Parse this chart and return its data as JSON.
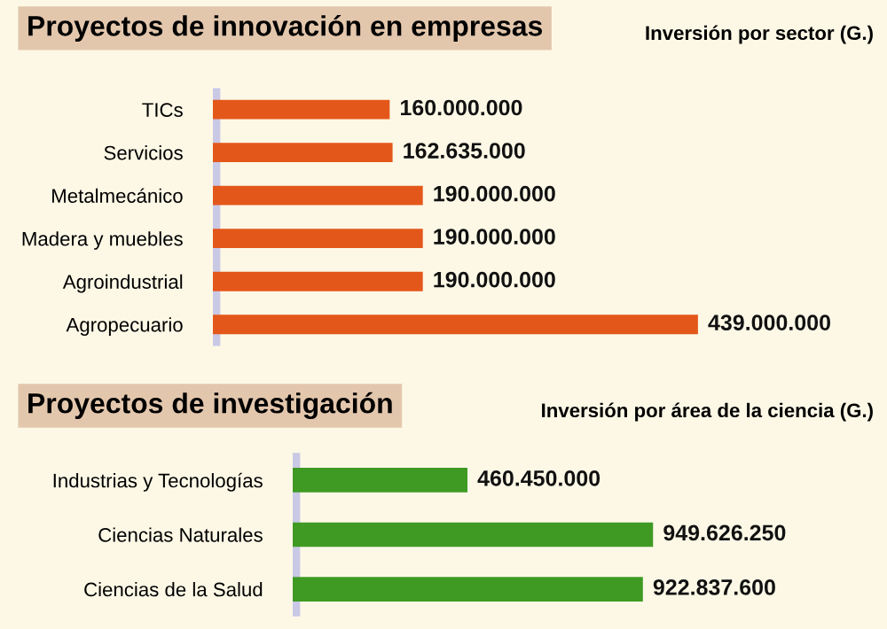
{
  "chart_data": [
    {
      "type": "bar",
      "orientation": "horizontal",
      "title": "Proyectos de innovación en empresas",
      "subtitle": "Inversión por sector (G.)",
      "categories": [
        "TICs",
        "Servicios",
        "Metalmecánico",
        "Madera y muebles",
        "Agroindustrial",
        "Agropecuario"
      ],
      "values": [
        160000000,
        162635000,
        190000000,
        190000000,
        190000000,
        439000000
      ],
      "value_labels": [
        "160.000.000",
        "162.635.000",
        "190.000.000",
        "190.000.000",
        "190.000.000",
        "439.000.000"
      ],
      "color": "#e4571a"
    },
    {
      "type": "bar",
      "orientation": "horizontal",
      "title": "Proyectos de investigación",
      "subtitle": "Inversión por área de la ciencia (G.)",
      "categories": [
        "Industrias y Tecnologías",
        "Ciencias Naturales",
        "Ciencias de la Salud"
      ],
      "values": [
        460450000,
        949626250,
        922837600
      ],
      "value_labels": [
        "460.450.000",
        "949.626.250",
        "922.837.600"
      ],
      "color": "#3f9a24"
    }
  ]
}
